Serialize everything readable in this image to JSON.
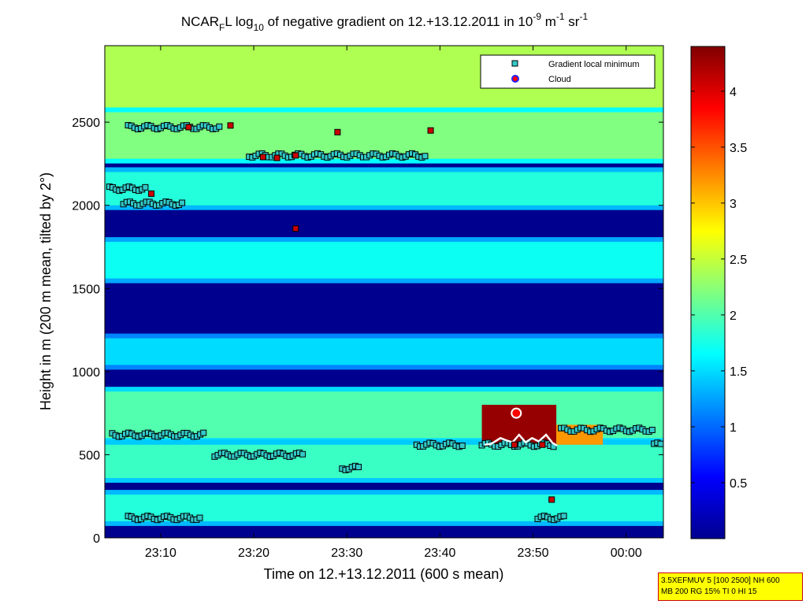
{
  "chart_data": {
    "type": "heatmap",
    "title": {
      "prefix": "NCAR",
      "sub_f": "F",
      "mid": "L log",
      "sub_10": "10",
      "main": " of negative gradient on 12.+13.12.2011 in 10",
      "sup_1": "-9",
      "unit_m": " m",
      "sup_2": "-1",
      "unit_sr": " sr",
      "sup_3": "-1"
    },
    "xlabel": "Time on 12.+13.12.2011 (600 s mean)",
    "ylabel": "Height in m (200 m mean, tilted by 2°)",
    "x_ticks": [
      "23:10",
      "23:20",
      "23:30",
      "23:40",
      "23:50",
      "00:00"
    ],
    "x_tick_minutes": [
      10,
      20,
      30,
      40,
      50,
      60
    ],
    "xlim_minutes": [
      4,
      64
    ],
    "y_ticks": [
      0,
      500,
      1000,
      1500,
      2000,
      2500
    ],
    "ylim": [
      0,
      2960
    ],
    "colorbar": {
      "ticks": [
        "0.5",
        "1",
        "1.5",
        "2",
        "2.5",
        "3",
        "3.5",
        "4"
      ],
      "tick_values": [
        0.5,
        1,
        1.5,
        2,
        2.5,
        3,
        3.5,
        4
      ],
      "range": [
        0,
        4.4
      ],
      "colormap": "jet"
    },
    "legend": {
      "position": "top-right",
      "entries": [
        "Gradient local minimum",
        "Cloud"
      ]
    },
    "bands": [
      {
        "y0": 2580,
        "y1": 2960,
        "value": 2.4
      },
      {
        "y0": 2280,
        "y1": 2560,
        "value": 2.2
      },
      {
        "y0": 2000,
        "y1": 2200,
        "value": 1.8
      },
      {
        "y0": 1560,
        "y1": 1780,
        "value": 1.7
      },
      {
        "y0": 1040,
        "y1": 1200,
        "value": 1.5
      },
      {
        "y0": 600,
        "y1": 880,
        "value": 2.0
      },
      {
        "y0": 360,
        "y1": 560,
        "value": 1.9
      },
      {
        "y0": 100,
        "y1": 260,
        "value": 1.8
      }
    ],
    "cloud_region": {
      "x0": 44.5,
      "x1": 52.5,
      "y0": 560,
      "y1": 800,
      "value": 4.3
    },
    "gradient_minimum_segments": [
      {
        "x0": 4.8,
        "x1": 14.8,
        "y": 620
      },
      {
        "x0": 15.8,
        "x1": 25.3,
        "y": 500
      },
      {
        "x0": 6.5,
        "x1": 14.5,
        "y": 120
      },
      {
        "x0": 37.5,
        "x1": 42.5,
        "y": 560
      },
      {
        "x0": 44.5,
        "x1": 52.5,
        "y": 560
      },
      {
        "x0": 53.0,
        "x1": 63.0,
        "y": 650
      },
      {
        "x0": 63.0,
        "x1": 64.0,
        "y": 560
      },
      {
        "x0": 50.5,
        "x1": 53.5,
        "y": 120
      },
      {
        "x0": 29.5,
        "x1": 31.5,
        "y": 420
      },
      {
        "x0": 6.5,
        "x1": 16.5,
        "y": 2470
      },
      {
        "x0": 19.5,
        "x1": 38.5,
        "y": 2300
      },
      {
        "x0": 4.5,
        "x1": 8.5,
        "y": 2100
      },
      {
        "x0": 6.0,
        "x1": 12.5,
        "y": 2010
      }
    ],
    "clouds": [
      {
        "x": 13.0,
        "y": 2470
      },
      {
        "x": 17.5,
        "y": 2480
      },
      {
        "x": 21.0,
        "y": 2290
      },
      {
        "x": 22.5,
        "y": 2285
      },
      {
        "x": 24.5,
        "y": 2300
      },
      {
        "x": 29.0,
        "y": 2440
      },
      {
        "x": 39.0,
        "y": 2450
      },
      {
        "x": 9.0,
        "y": 2070
      },
      {
        "x": 24.5,
        "y": 1860
      },
      {
        "x": 48.0,
        "y": 560
      },
      {
        "x": 51.0,
        "y": 560
      },
      {
        "x": 52.0,
        "y": 230
      }
    ],
    "cloud_outline_points": [
      [
        44.8,
        560
      ],
      [
        45.5,
        565
      ],
      [
        46.5,
        600
      ],
      [
        47.2,
        585
      ],
      [
        47.8,
        575
      ],
      [
        48.5,
        620
      ],
      [
        49.2,
        575
      ],
      [
        49.9,
        600
      ],
      [
        50.6,
        580
      ],
      [
        51.4,
        620
      ],
      [
        52.1,
        570
      ],
      [
        52.6,
        555
      ]
    ],
    "cloud_circle_top": {
      "x": 48.2,
      "y": 750
    }
  },
  "info_box": {
    "line1": "3.5XEFMUV 5 [100 2500] NH 600",
    "line2": "MB 200 RG 15% TI 0 HI 15"
  }
}
